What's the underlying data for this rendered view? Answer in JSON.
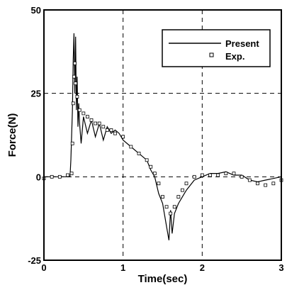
{
  "chart_data": {
    "type": "line",
    "title": "",
    "xlabel": "Time(sec)",
    "ylabel": "Force(N)",
    "xlim": [
      0,
      3
    ],
    "ylim": [
      -25,
      50
    ],
    "x_ticks": [
      0,
      1,
      2,
      3
    ],
    "y_ticks": [
      -25,
      0,
      25,
      50
    ],
    "x_tick_labels": [
      "0",
      "1",
      "2",
      "3"
    ],
    "y_tick_labels": [
      "-25",
      "0",
      "25",
      "50"
    ],
    "grid": "dashed",
    "legend": {
      "position": "top-right",
      "entries": [
        "Present",
        "Exp."
      ]
    },
    "series": [
      {
        "name": "Present",
        "style": "solid-line",
        "color": "#000000",
        "x": [
          0,
          0.2,
          0.33,
          0.34,
          0.36,
          0.37,
          0.38,
          0.39,
          0.4,
          0.41,
          0.42,
          0.43,
          0.44,
          0.45,
          0.47,
          0.5,
          0.55,
          0.6,
          0.65,
          0.7,
          0.75,
          0.8,
          0.85,
          0.9,
          0.95,
          1.0,
          1.1,
          1.2,
          1.3,
          1.35,
          1.4,
          1.45,
          1.5,
          1.55,
          1.58,
          1.6,
          1.62,
          1.65,
          1.7,
          1.75,
          1.8,
          1.9,
          2.0,
          2.1,
          2.2,
          2.3,
          2.4,
          2.5,
          2.6,
          2.7,
          2.8,
          2.9,
          3.0
        ],
        "y": [
          0,
          0,
          0,
          5,
          20,
          35,
          43,
          25,
          42,
          20,
          30,
          15,
          22,
          16,
          10,
          18,
          13,
          17,
          12,
          16,
          11,
          15,
          13,
          14,
          13,
          11,
          9,
          7,
          5,
          2,
          0,
          -5,
          -8,
          -15,
          -19,
          -10,
          -17,
          -11,
          -8,
          -6,
          -4,
          -1,
          0,
          1,
          1,
          1.5,
          0.5,
          0.5,
          -1,
          -1.5,
          -1,
          -0.5,
          0
        ]
      },
      {
        "name": "Exp.",
        "style": "open-squares",
        "color": "#000000",
        "x": [
          0,
          0.1,
          0.2,
          0.3,
          0.35,
          0.36,
          0.37,
          0.38,
          0.39,
          0.4,
          0.42,
          0.45,
          0.5,
          0.55,
          0.6,
          0.65,
          0.7,
          0.75,
          0.8,
          0.85,
          0.9,
          1.0,
          1.1,
          1.2,
          1.3,
          1.35,
          1.4,
          1.45,
          1.5,
          1.55,
          1.6,
          1.65,
          1.7,
          1.75,
          1.8,
          1.9,
          2.0,
          2.1,
          2.2,
          2.3,
          2.4,
          2.5,
          2.6,
          2.7,
          2.8,
          2.9,
          3.0
        ],
        "y": [
          -0.5,
          0,
          0,
          0.5,
          1,
          10,
          22,
          30,
          34,
          28,
          24,
          20,
          19,
          18,
          17,
          16,
          16,
          15,
          14,
          14,
          13,
          12,
          9,
          7,
          5,
          3,
          1,
          -2,
          -6,
          -9,
          -11,
          -9,
          -6,
          -4,
          -2,
          0,
          0.5,
          0.5,
          0.5,
          1,
          1,
          0,
          -1,
          -2,
          -2.5,
          -2,
          -1
        ]
      }
    ]
  }
}
